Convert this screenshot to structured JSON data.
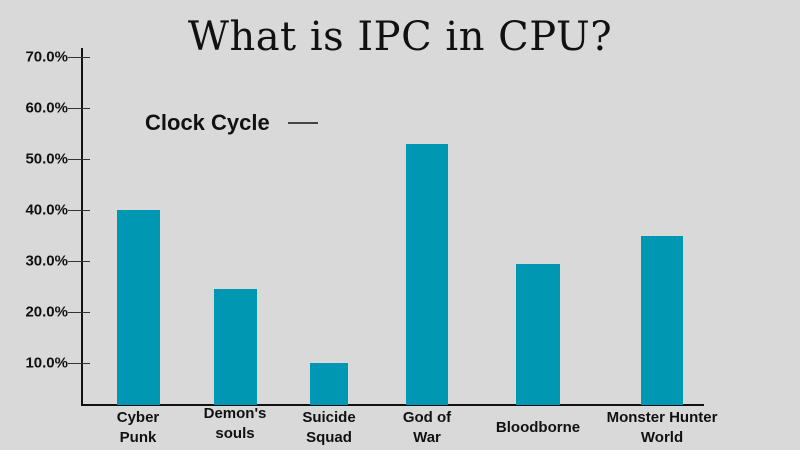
{
  "title": "What is IPC in CPU?",
  "legend": {
    "label": "Clock Cycle"
  },
  "colors": {
    "bar": "#0097b2",
    "background": "#d9d9d9",
    "axis": "#111111"
  },
  "y_ticks": [
    "70.0%",
    "60.0%",
    "50.0%",
    "40.0%",
    "30.0%",
    "20.0%",
    "10.0%"
  ],
  "x_labels": [
    "Cyber\nPunk",
    "Demon's\nsouls",
    "Suicide\nSquad",
    "God of\nWar",
    "Bloodborne",
    "Monster Hunter\nWorld"
  ],
  "chart_data": {
    "type": "bar",
    "title": "What is IPC in CPU?",
    "categories": [
      "Cyber Punk",
      "Demon's souls",
      "Suicide Squad",
      "God of War",
      "Bloodborne",
      "Monster Hunter World"
    ],
    "series": [
      {
        "name": "Clock Cycle",
        "values": [
          40,
          24.5,
          10,
          53,
          29.5,
          35
        ]
      }
    ],
    "xlabel": "",
    "ylabel": "",
    "ylim": [
      0,
      70
    ],
    "y_tick_labels": [
      "10.0%",
      "20.0%",
      "30.0%",
      "40.0%",
      "50.0%",
      "60.0%",
      "70.0%"
    ],
    "grid": false,
    "legend_position": "top-left"
  }
}
